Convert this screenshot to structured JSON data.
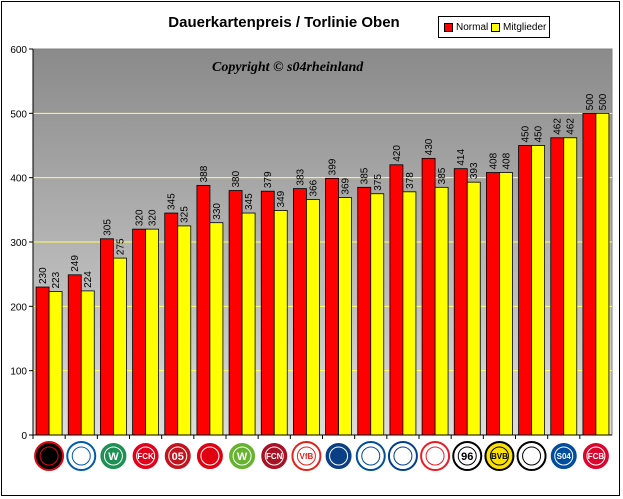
{
  "chart_data": {
    "type": "bar",
    "title": "Dauerkartenpreis / Torlinie Oben",
    "annotation": "Copyright © s04rheinland",
    "xlabel": "",
    "ylabel": "",
    "ylim": [
      0,
      600
    ],
    "yticks": [
      0,
      100,
      200,
      300,
      400,
      500,
      600
    ],
    "grid": true,
    "legend_position": "top-right",
    "categories": [
      "Leverkusen",
      "Hertha BSC",
      "Werder Bremen",
      "Kaiserslautern",
      "Mainz 05",
      "Eintracht Frankfurt",
      "Wolfsburg",
      "1. FC Nürnberg",
      "VfB Stuttgart",
      "Hamburger SV",
      "Arminia Bielefeld",
      "Hansa Rostock",
      "1. FC Köln",
      "Hannover 96",
      "Borussia Dortmund",
      "Mönchengladbach",
      "Schalke 04",
      "Bayern München"
    ],
    "series": [
      {
        "name": "Normal",
        "color": "#ff0000",
        "values": [
          230,
          249,
          305,
          320,
          345,
          388,
          380,
          379,
          383,
          399,
          385,
          420,
          430,
          414,
          408,
          450,
          462,
          500
        ]
      },
      {
        "name": "Mitglieder",
        "color": "#ffff00",
        "values": [
          223,
          224,
          275,
          320,
          325,
          330,
          345,
          349,
          366,
          369,
          375,
          378,
          385,
          393,
          408,
          450,
          462,
          500
        ]
      }
    ]
  },
  "colors": {
    "plot_bg_top": "#8a8a8a",
    "plot_bg_bottom": "#dcdcdc",
    "gridline": "#ffff66"
  },
  "logos": [
    {
      "icon": "leverkusen-crest-icon",
      "text": "",
      "fg": "#e30613",
      "bg": "#000000"
    },
    {
      "icon": "hertha-crest-icon",
      "text": "",
      "fg": "#005ca9",
      "bg": "#ffffff"
    },
    {
      "icon": "werder-crest-icon",
      "text": "W",
      "fg": "#ffffff",
      "bg": "#1d9053"
    },
    {
      "icon": "fck-crest-icon",
      "text": "FCK",
      "fg": "#ffffff",
      "bg": "#e2001a"
    },
    {
      "icon": "mainz-crest-icon",
      "text": "05",
      "fg": "#ffffff",
      "bg": "#c3141e"
    },
    {
      "icon": "frankfurt-crest-icon",
      "text": "",
      "fg": "#ffffff",
      "bg": "#e1000f"
    },
    {
      "icon": "wolfsburg-crest-icon",
      "text": "W",
      "fg": "#ffffff",
      "bg": "#65b32e"
    },
    {
      "icon": "nuernberg-crest-icon",
      "text": "FCN",
      "fg": "#ffffff",
      "bg": "#aa1124"
    },
    {
      "icon": "stuttgart-crest-icon",
      "text": "VfB",
      "fg": "#e32219",
      "bg": "#ffffff"
    },
    {
      "icon": "hsv-crest-icon",
      "text": "",
      "fg": "#ffffff",
      "bg": "#0a3f86"
    },
    {
      "icon": "bielefeld-crest-icon",
      "text": "",
      "fg": "#004e95",
      "bg": "#ffffff"
    },
    {
      "icon": "rostock-crest-icon",
      "text": "",
      "fg": "#003f8c",
      "bg": "#ffffff"
    },
    {
      "icon": "koeln-crest-icon",
      "text": "",
      "fg": "#ed1c24",
      "bg": "#ffffff"
    },
    {
      "icon": "hannover-crest-icon",
      "text": "96",
      "fg": "#000000",
      "bg": "#ffffff"
    },
    {
      "icon": "dortmund-crest-icon",
      "text": "BVB",
      "fg": "#000000",
      "bg": "#fde100"
    },
    {
      "icon": "gladbach-crest-icon",
      "text": "",
      "fg": "#000000",
      "bg": "#ffffff"
    },
    {
      "icon": "schalke-crest-icon",
      "text": "S04",
      "fg": "#ffffff",
      "bg": "#004d9d"
    },
    {
      "icon": "bayern-crest-icon",
      "text": "FCB",
      "fg": "#ffffff",
      "bg": "#dc052d"
    }
  ]
}
